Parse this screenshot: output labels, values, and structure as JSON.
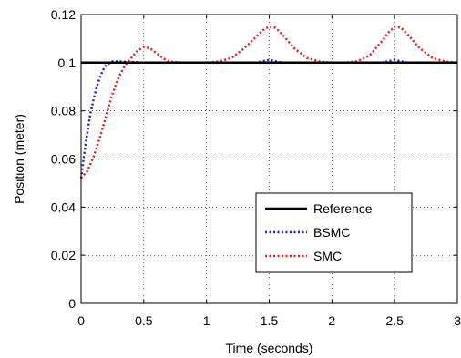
{
  "chart_data": {
    "type": "line",
    "title": "",
    "xlabel": "Time (seconds)",
    "ylabel": "Position (meter)",
    "xlim": [
      0,
      3
    ],
    "ylim": [
      0,
      0.12
    ],
    "xticks": [
      "0",
      "0.5",
      "1",
      "1.5",
      "2",
      "2.5",
      "3"
    ],
    "yticks": [
      "0",
      "0.02",
      "0.04",
      "0.06",
      "0.08",
      "0.1",
      "0.12"
    ],
    "grid": true,
    "legend_position": "lower-right",
    "series": [
      {
        "name": "Reference",
        "color": "#000000",
        "style": "solid",
        "x": [
          0,
          3
        ],
        "y": [
          0.1,
          0.1
        ]
      },
      {
        "name": "BSMC",
        "color": "#1f1fcf",
        "style": "dotted",
        "x": [
          0,
          0.025,
          0.05,
          0.075,
          0.1,
          0.125,
          0.15,
          0.175,
          0.2,
          0.25,
          0.3,
          0.5,
          1.0,
          1.4,
          1.5,
          1.6,
          2.0,
          2.4,
          2.5,
          2.6,
          3.0
        ],
        "y": [
          0.052,
          0.062,
          0.071,
          0.079,
          0.085,
          0.09,
          0.094,
          0.097,
          0.099,
          0.1005,
          0.1005,
          0.1,
          0.1,
          0.1,
          0.1012,
          0.1,
          0.1,
          0.1,
          0.1012,
          0.1,
          0.1
        ]
      },
      {
        "name": "SMC",
        "color": "#e81c1c",
        "style": "dotted",
        "x": [
          0,
          0.05,
          0.1,
          0.15,
          0.2,
          0.25,
          0.3,
          0.35,
          0.4,
          0.45,
          0.5,
          0.55,
          0.6,
          0.65,
          0.7,
          0.8,
          0.9,
          1.0,
          1.1,
          1.2,
          1.3,
          1.4,
          1.45,
          1.5,
          1.55,
          1.6,
          1.7,
          1.8,
          1.9,
          2.0,
          2.1,
          2.2,
          2.3,
          2.4,
          2.45,
          2.5,
          2.55,
          2.6,
          2.7,
          2.8,
          2.9,
          3.0
        ],
        "y": [
          0.052,
          0.055,
          0.061,
          0.069,
          0.078,
          0.087,
          0.094,
          0.099,
          0.102,
          0.105,
          0.1065,
          0.106,
          0.104,
          0.102,
          0.1005,
          0.1,
          0.1,
          0.1,
          0.1005,
          0.102,
          0.106,
          0.111,
          0.1135,
          0.115,
          0.1145,
          0.112,
          0.106,
          0.102,
          0.1005,
          0.1,
          0.1,
          0.1005,
          0.103,
          0.109,
          0.1125,
          0.115,
          0.1145,
          0.112,
          0.106,
          0.102,
          0.1005,
          0.1
        ]
      }
    ]
  }
}
